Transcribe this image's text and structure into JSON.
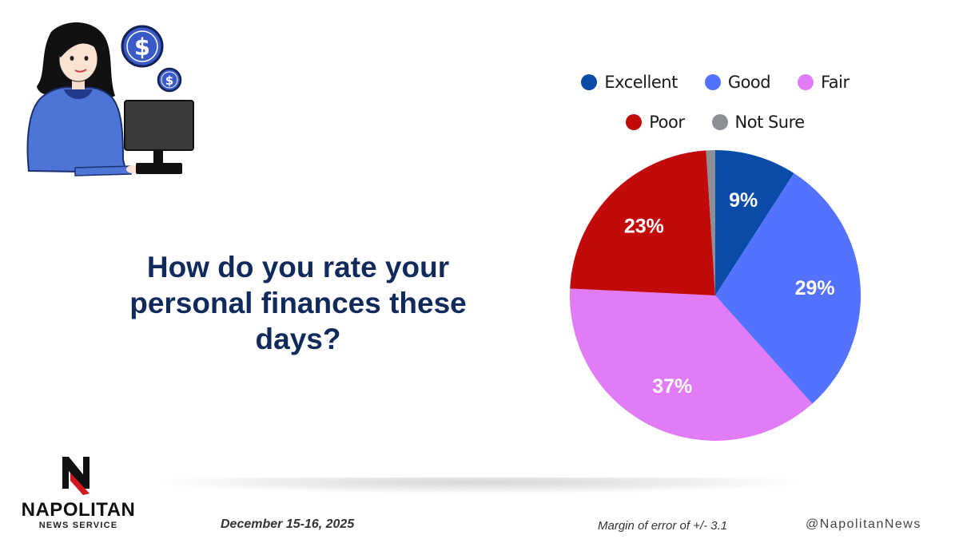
{
  "question": "How do you rate your personal finances these days?",
  "chart_data": {
    "type": "pie",
    "categories": [
      "Excellent",
      "Good",
      "Fair",
      "Poor",
      "Not Sure"
    ],
    "values": [
      9,
      29,
      37,
      23,
      1
    ],
    "data_labels": [
      "9%",
      "29%",
      "37%",
      "23%",
      ""
    ],
    "colors": [
      "#0a4aa8",
      "#5272ff",
      "#e17bf6",
      "#c30a0a",
      "#8c8f94"
    ],
    "legend_position": "top"
  },
  "footer": {
    "logo_name": "NAPOLITAN",
    "logo_subtitle": "NEWS SERVICE",
    "date": "December 15-16, 2025",
    "margin_of_error": "Margin of error of +/- 3.1",
    "handle": "@NapolitanNews"
  },
  "icons": {
    "illustration": "woman-at-computer-icon",
    "coin": "dollar-coin-icon",
    "logo": "napolitan-n-logo"
  }
}
